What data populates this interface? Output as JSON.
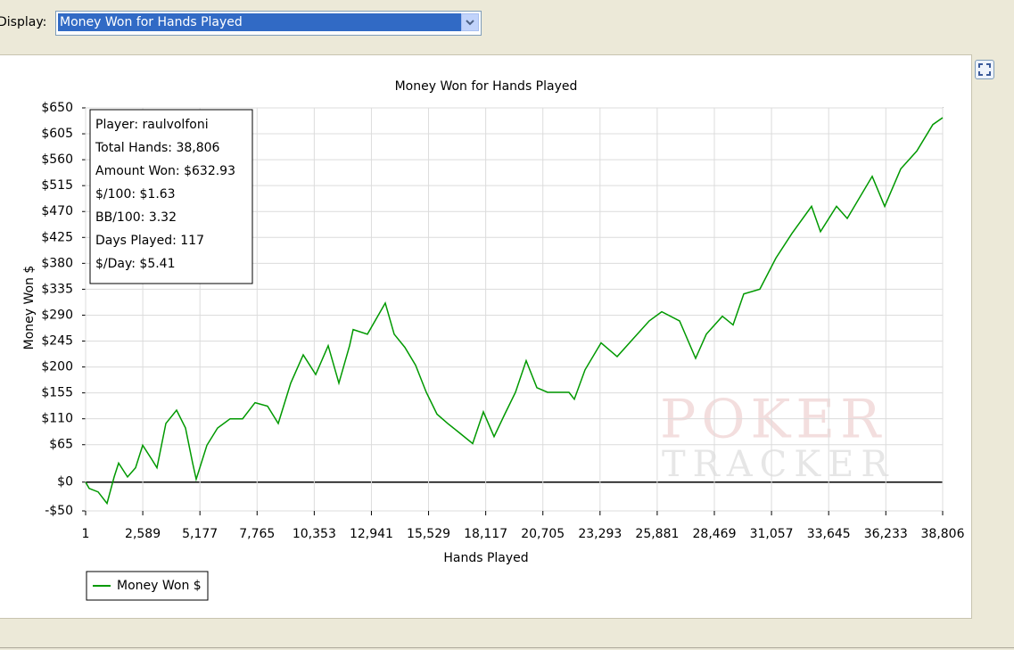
{
  "display_label": "Display:",
  "dropdown": "Money Won for Hands Played",
  "chart_data": {
    "type": "line",
    "title": "Money Won for Hands Played",
    "x_label": "Hands Played",
    "y_label": "Money Won $",
    "info_box": [
      "Player: raulvolfoni",
      "Total Hands: 38,806",
      "Amount Won: $632.93",
      "$/100: $1.63",
      "BB/100: 3.32",
      "Days Played: 117",
      "$/Day: $5.41"
    ],
    "watermark": [
      "POKER",
      "TRACKER"
    ],
    "grid": true,
    "x": [
      1,
      163,
      566,
      970,
      1293,
      1495,
      1899,
      2262,
      2585,
      2989,
      3231,
      3635,
      4120,
      4524,
      4847,
      5008,
      5493,
      5977,
      6543,
      7108,
      7673,
      8238,
      8723,
      9288,
      9854,
      10419,
      10984,
      11469,
      11953,
      12115,
      12761,
      13569,
      13973,
      14457,
      14942,
      15427,
      15911,
      16396,
      16880,
      17527,
      18011,
      18496,
      18980,
      19465,
      19950,
      20434,
      20919,
      21403,
      21888,
      22130,
      22614,
      23341,
      24068,
      24795,
      25522,
      26087,
      26893,
      27620,
      28105,
      28832,
      29316,
      29801,
      30528,
      31255,
      31981,
      32870,
      33273,
      34000,
      34485,
      35212,
      35615,
      36181,
      36908,
      37634,
      38361,
      38806
    ],
    "series": [
      {
        "name": "Money Won $",
        "color": "#009900",
        "values": [
          0,
          -11,
          -17,
          -37,
          9,
          33,
          9,
          25,
          64,
          40,
          25,
          102,
          125,
          94,
          33,
          5,
          64,
          94,
          110,
          110,
          138,
          132,
          102,
          172,
          221,
          187,
          237,
          172,
          237,
          265,
          257,
          311,
          257,
          234,
          203,
          156,
          118,
          102,
          87,
          67,
          122,
          79,
          118,
          156,
          211,
          164,
          156,
          156,
          156,
          144,
          195,
          242,
          218,
          249,
          280,
          296,
          280,
          215,
          257,
          288,
          273,
          327,
          335,
          389,
          432,
          479,
          435,
          479,
          458,
          505,
          531,
          479,
          544,
          575,
          621,
          633
        ]
      }
    ],
    "xlim": [
      1,
      38806
    ],
    "xticks": [
      1,
      {
        "value": 2589,
        "label": "2,589"
      },
      {
        "value": 5177,
        "label": "5,177"
      },
      {
        "value": 7765,
        "label": "7,765"
      },
      {
        "value": 10353,
        "label": "10,353"
      },
      {
        "value": 12941,
        "label": "12,941"
      },
      {
        "value": 15529,
        "label": "15,529"
      },
      {
        "value": 18117,
        "label": "18,117"
      },
      {
        "value": 20705,
        "label": "20,705"
      },
      {
        "value": 23293,
        "label": "23,293"
      },
      {
        "value": 25881,
        "label": "25,881"
      },
      {
        "value": 28469,
        "label": "28,469"
      },
      {
        "value": 31057,
        "label": "31,057"
      },
      {
        "value": 33645,
        "label": "33,645"
      },
      {
        "value": 36233,
        "label": "36,233"
      },
      {
        "value": 38806,
        "label": "38,806"
      }
    ],
    "ylim": [
      -50,
      650
    ],
    "yticks": [
      {
        "value": -50,
        "label": "-$50"
      },
      {
        "value": 0,
        "label": "$0"
      },
      {
        "value": 65,
        "label": "$65"
      },
      {
        "value": 110,
        "label": "$110"
      },
      {
        "value": 155,
        "label": "$155"
      },
      {
        "value": 200,
        "label": "$200"
      },
      {
        "value": 245,
        "label": "$245"
      },
      {
        "value": 290,
        "label": "$290"
      },
      {
        "value": 335,
        "label": "$335"
      },
      {
        "value": 380,
        "label": "$380"
      },
      {
        "value": 425,
        "label": "$425"
      },
      {
        "value": 470,
        "label": "$470"
      },
      {
        "value": 515,
        "label": "$515"
      },
      {
        "value": 560,
        "label": "$560"
      },
      {
        "value": 605,
        "label": "$605"
      },
      {
        "value": 650,
        "label": "$650"
      }
    ]
  }
}
